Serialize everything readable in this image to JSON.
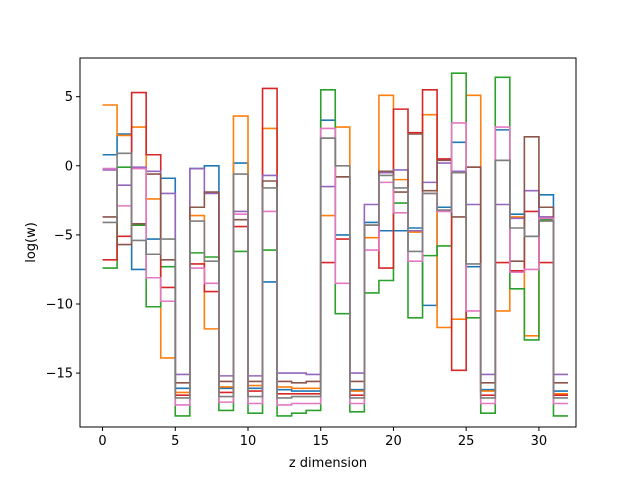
{
  "chart_data": {
    "type": "line",
    "style": "step",
    "xlabel": "z dimension",
    "ylabel": "log(w)",
    "xlim": [
      -1.55,
      32.55
    ],
    "ylim": [
      -18.9,
      7.8
    ],
    "xticks": [
      0,
      5,
      10,
      15,
      20,
      25,
      30
    ],
    "yticks": [
      -15,
      -10,
      -5,
      0,
      5
    ],
    "grid": false,
    "legend": "none",
    "series": [
      {
        "color": "#1f77b4",
        "values": [
          0.8,
          2.3,
          -7.5,
          -5.3,
          -0.9,
          -16.1,
          -0.2,
          0.0,
          -16.1,
          0.2,
          -16.1,
          -8.4,
          -16.2,
          -16.3,
          -16.3,
          3.3,
          -5.0,
          -16.2,
          -4.1,
          -4.7,
          -4.7,
          -4.5,
          -10.1,
          -3.0,
          1.7,
          -7.3,
          -16.2,
          2.6,
          -3.5,
          -5.1,
          -2.1,
          -16.3
        ]
      },
      {
        "color": "#ff7f0e",
        "values": [
          4.4,
          2.2,
          2.8,
          -2.4,
          -13.9,
          -16.4,
          -3.6,
          -11.8,
          -16.0,
          3.6,
          -15.9,
          2.7,
          -16.0,
          -16.1,
          -16.1,
          -3.6,
          2.8,
          -16.3,
          -5.2,
          5.1,
          -1.0,
          -4.8,
          3.7,
          -11.7,
          -11.1,
          5.1,
          -16.3,
          -10.5,
          -3.7,
          -12.3,
          -3.7,
          -16.5
        ]
      },
      {
        "color": "#2ca02c",
        "values": [
          -7.4,
          -0.1,
          -4.3,
          -10.2,
          -7.3,
          -18.1,
          -6.3,
          -6.6,
          -17.7,
          -6.2,
          -17.9,
          -6.1,
          -18.1,
          -17.9,
          -17.7,
          5.5,
          -10.7,
          -17.8,
          -9.2,
          -8.3,
          -2.7,
          -11.0,
          -6.5,
          -5.8,
          6.7,
          -11.0,
          -17.9,
          6.4,
          -8.9,
          -12.6,
          -3.9,
          -18.1
        ]
      },
      {
        "color": "#d62728",
        "values": [
          -6.8,
          -5.1,
          5.3,
          0.8,
          -8.8,
          -16.6,
          -7.1,
          -9.1,
          -16.4,
          -4.4,
          -16.3,
          5.6,
          -16.5,
          -16.5,
          -16.5,
          -7.0,
          -5.3,
          -16.6,
          -4.3,
          -7.4,
          4.1,
          2.4,
          5.5,
          0.5,
          -14.8,
          -0.1,
          -16.6,
          -7.0,
          -7.6,
          -3.3,
          -7.0,
          -16.6
        ]
      },
      {
        "color": "#9467bd",
        "values": [
          -0.3,
          -1.4,
          -0.1,
          -0.4,
          -2.0,
          -15.1,
          -0.2,
          -2.0,
          -15.2,
          -3.3,
          -15.2,
          -0.7,
          -15.0,
          -15.0,
          -15.1,
          -1.5,
          -0.8,
          -15.0,
          -2.8,
          -0.5,
          -0.3,
          -4.7,
          -1.2,
          0.2,
          -0.4,
          -2.8,
          -15.1,
          -2.8,
          -3.8,
          -1.8,
          -3.7,
          -15.1
        ]
      },
      {
        "color": "#8c564b",
        "values": [
          -3.7,
          -5.7,
          -4.2,
          -0.6,
          -6.8,
          -15.7,
          -3.0,
          -1.9,
          -15.6,
          -3.9,
          -15.6,
          -1.1,
          -15.6,
          -15.7,
          -15.6,
          2.0,
          -0.8,
          -15.6,
          -4.3,
          -0.4,
          -1.9,
          2.3,
          -1.8,
          0.4,
          -3.7,
          -0.1,
          -15.7,
          0.4,
          -6.9,
          2.1,
          -3.0,
          -15.7
        ]
      },
      {
        "color": "#e377c2",
        "values": [
          -0.2,
          -2.9,
          -0.2,
          -8.1,
          -9.8,
          -17.3,
          -7.4,
          -8.5,
          -17.1,
          -3.5,
          -17.2,
          -3.3,
          -17.3,
          -17.2,
          -17.2,
          2.7,
          -8.5,
          -17.2,
          -6.1,
          -1.2,
          -3.4,
          -6.9,
          -2.0,
          -3.3,
          3.1,
          -10.5,
          -17.2,
          2.8,
          -7.7,
          -7.5,
          -3.8,
          -17.2
        ]
      },
      {
        "color": "#7f7f7f",
        "values": [
          -4.1,
          0.9,
          -5.4,
          -6.4,
          -5.3,
          -16.8,
          -4.0,
          -6.9,
          -16.7,
          -0.6,
          -16.7,
          -1.6,
          -16.8,
          -16.7,
          -16.7,
          2.0,
          0.0,
          -16.8,
          -4.3,
          -0.7,
          -1.6,
          -6.2,
          -2.0,
          -3.2,
          -0.5,
          -7.1,
          -16.8,
          0.4,
          -4.5,
          -5.1,
          -4.0,
          -16.8
        ]
      }
    ]
  }
}
